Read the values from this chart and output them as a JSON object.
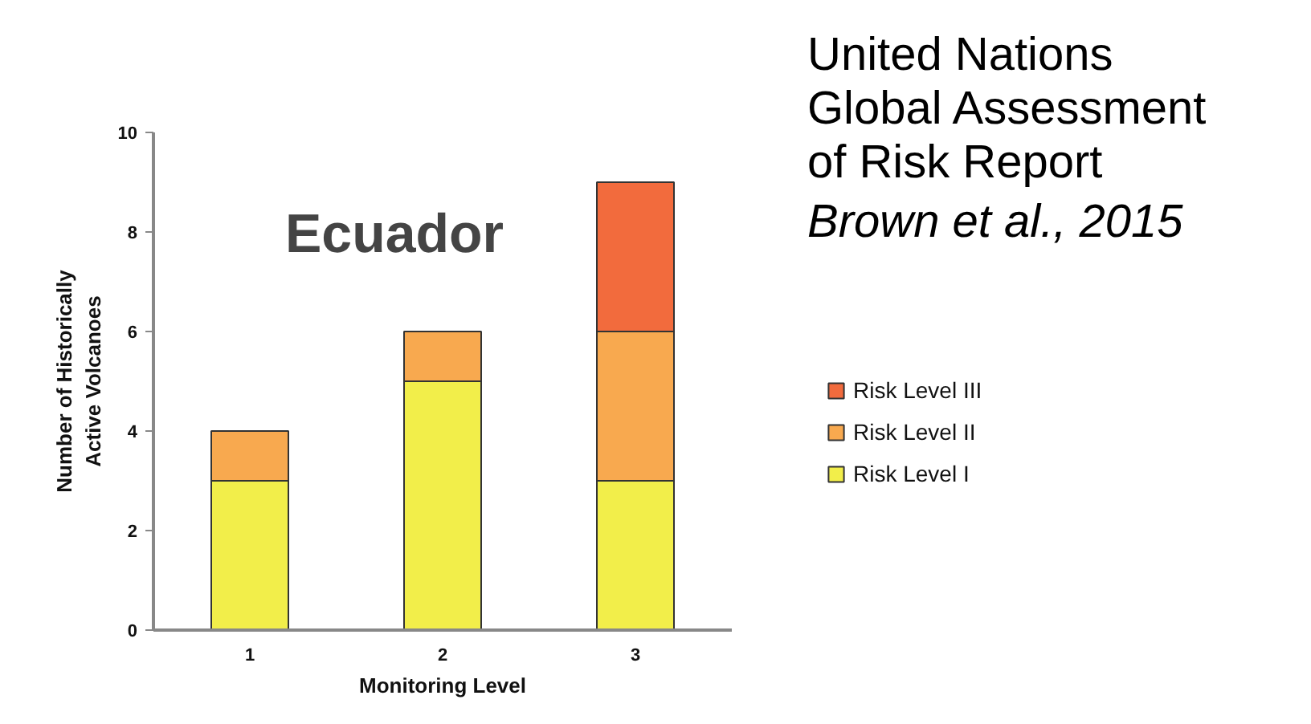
{
  "chart_data": {
    "type": "bar",
    "title": "Ecuador",
    "xlabel": "Monitoring Level",
    "ylabel": "Number of Historically\nActive Volcanoes",
    "annotations": [
      "United Nations\nGlobal Assessment\nof Risk Report",
      "Brown et al., 2015"
    ],
    "categories": [
      "1",
      "2",
      "3"
    ],
    "stacked": true,
    "series": [
      {
        "name": "Risk Level I",
        "color": "#f2ee4a",
        "values": [
          3,
          5,
          3
        ]
      },
      {
        "name": "Risk Level II",
        "color": "#f8a94f",
        "values": [
          1,
          1,
          3
        ]
      },
      {
        "name": "Risk Level III",
        "color": "#f26b3d",
        "values": [
          0,
          0,
          3
        ]
      }
    ],
    "ylim": [
      0,
      10
    ],
    "yticks": [
      0,
      2,
      4,
      6,
      8,
      10
    ],
    "grid": false,
    "legend": "right"
  }
}
